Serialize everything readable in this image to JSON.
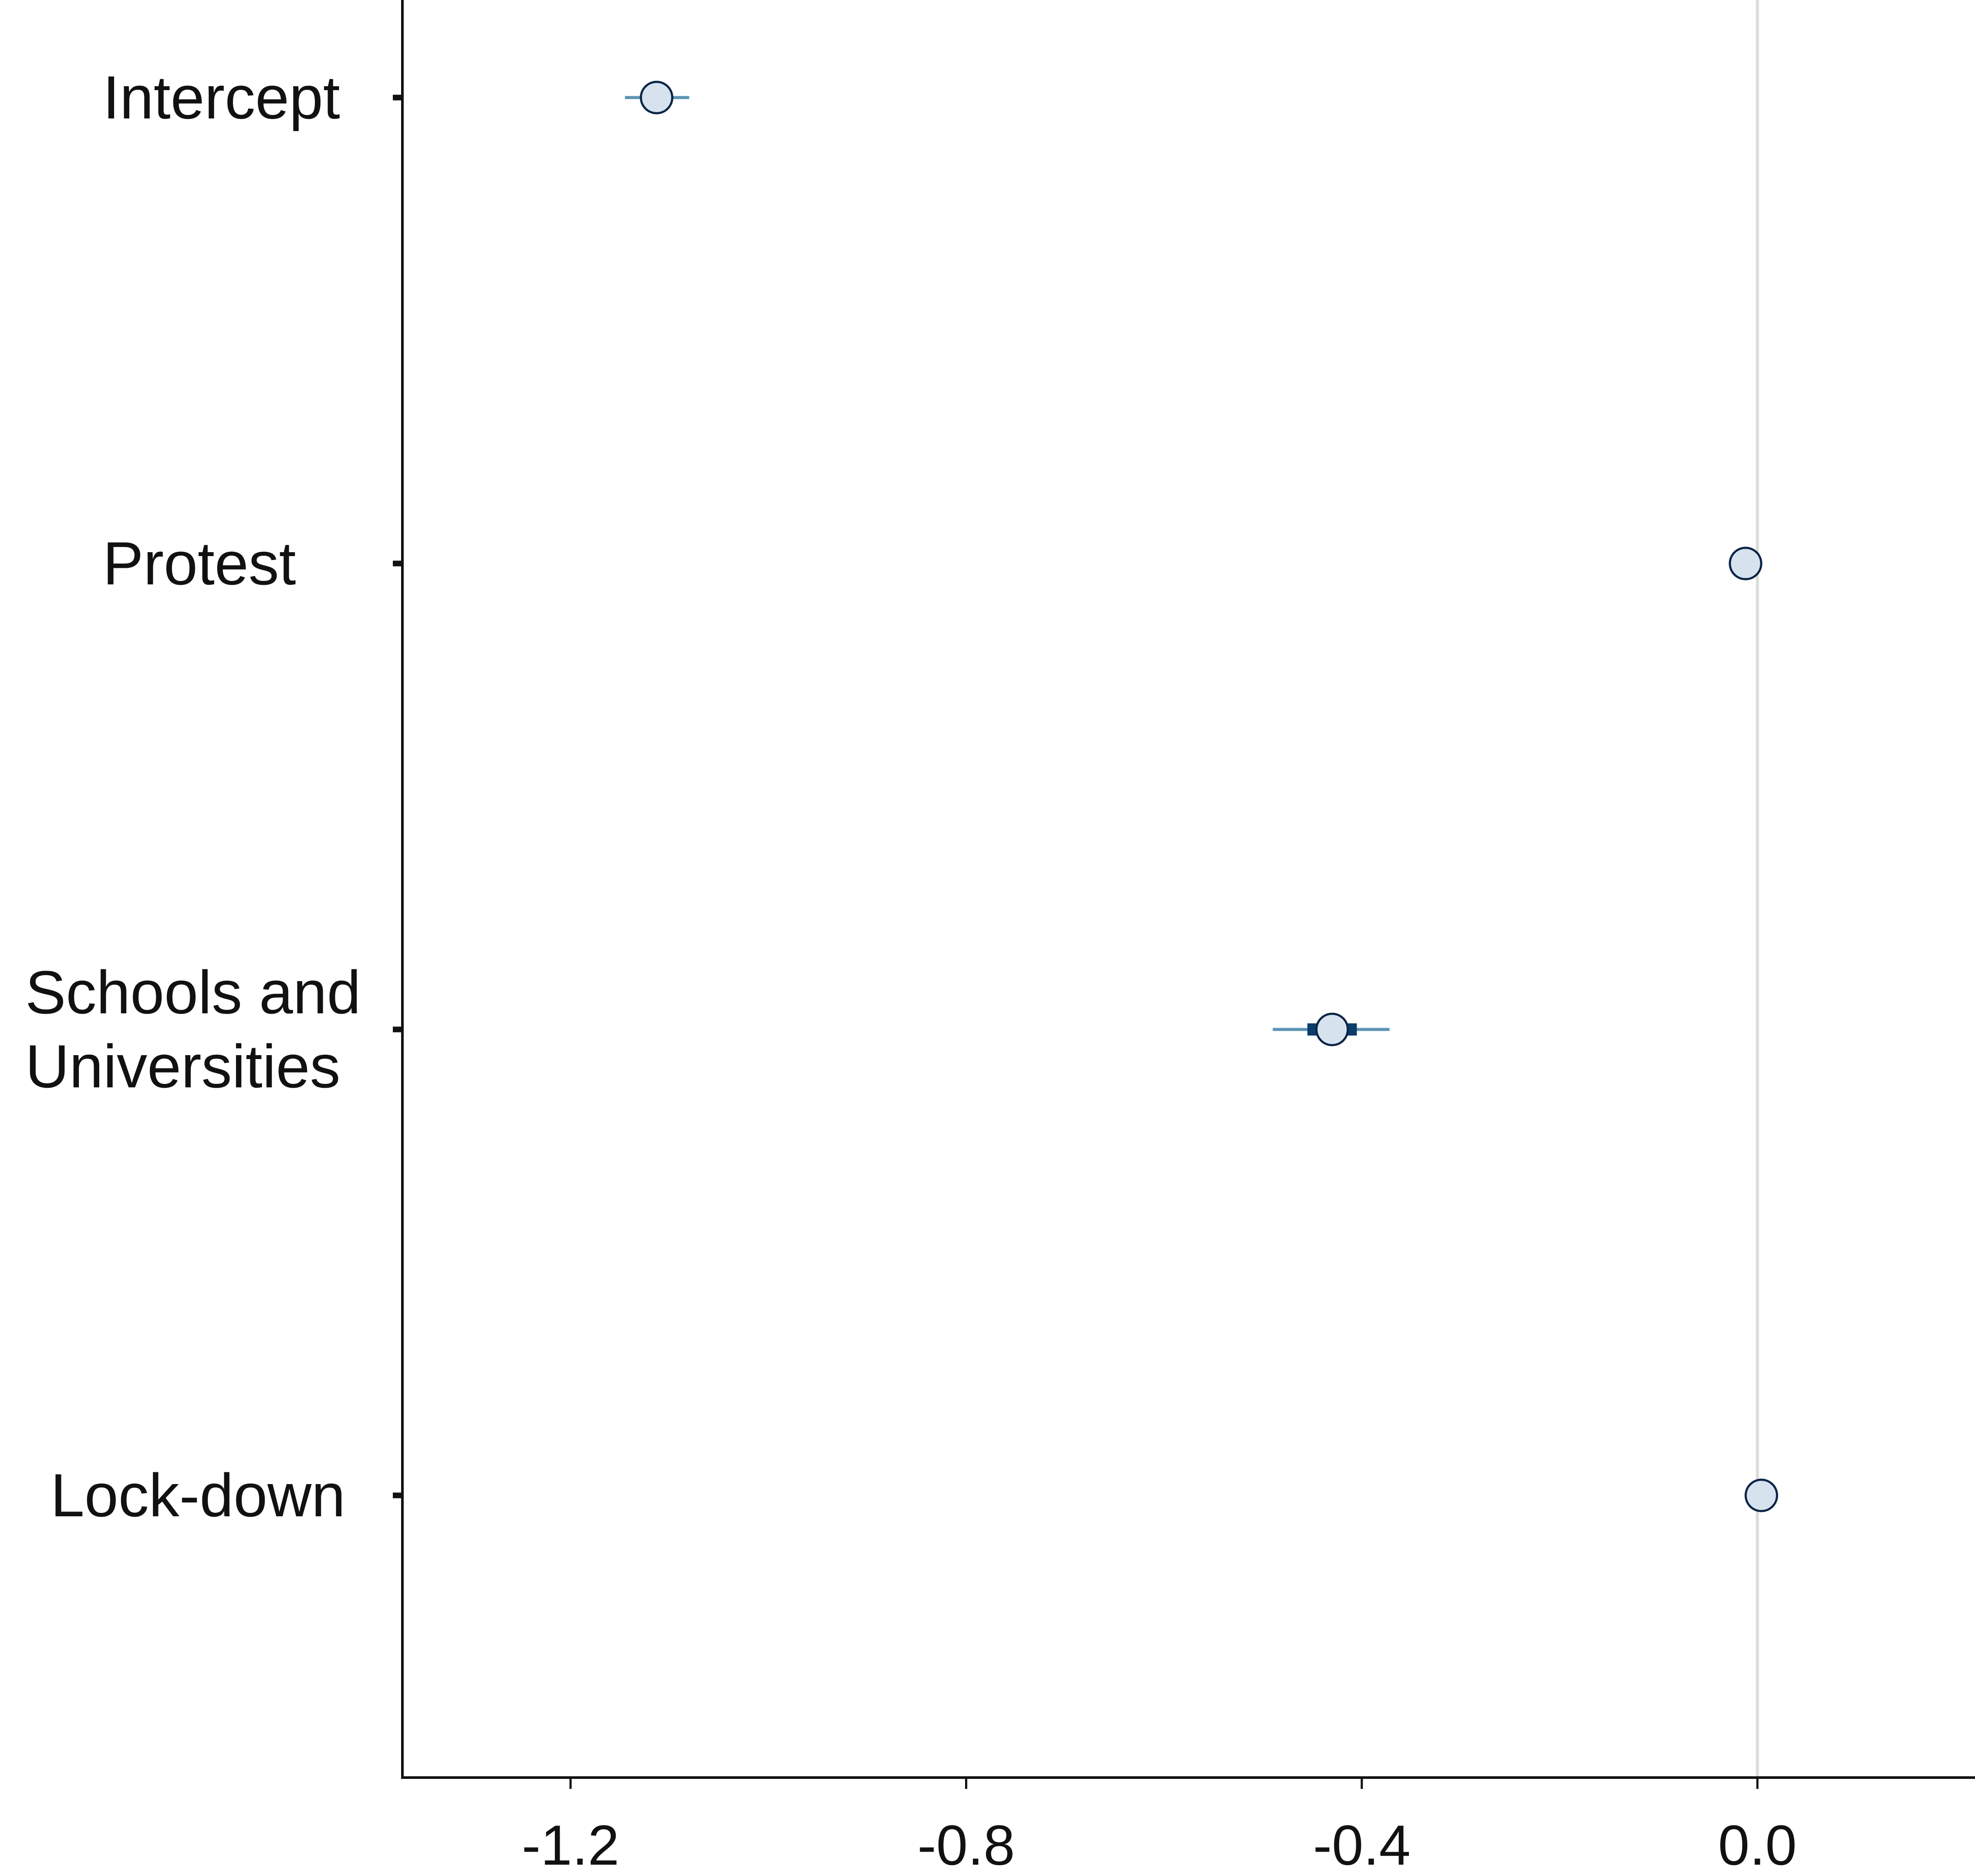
{
  "chart_data": {
    "type": "scatter",
    "subtype": "coefficient-interval-plot",
    "title": "",
    "xlabel": "",
    "ylabel": "",
    "xlim": [
      -1.37,
      0.22
    ],
    "x_ticks": [
      -1.2,
      -0.8,
      -0.4,
      0.0
    ],
    "x_tick_labels": [
      "-1.2",
      "-0.8",
      "-0.4",
      "0.0"
    ],
    "reference_line": 0.0,
    "grid": false,
    "legend": "none",
    "categories": [
      {
        "label_lines": [
          "Intercept"
        ]
      },
      {
        "label_lines": [
          "Protest"
        ]
      },
      {
        "label_lines": [
          "Schools and",
          "Universities"
        ]
      },
      {
        "label_lines": [
          "Lock-down"
        ]
      }
    ],
    "points": [
      {
        "estimate": -1.113,
        "inner": [
          -1.129,
          -1.097
        ],
        "outer": [
          -1.145,
          -1.08
        ]
      },
      {
        "estimate": -0.012,
        "inner": [
          -0.015,
          -0.009
        ],
        "outer": [
          -0.018,
          -0.006
        ]
      },
      {
        "estimate": -0.43,
        "inner": [
          -0.455,
          -0.405
        ],
        "outer": [
          -0.49,
          -0.372
        ]
      },
      {
        "estimate": 0.004,
        "inner": [
          0.002,
          0.006
        ],
        "outer": [
          0.0,
          0.008
        ]
      }
    ],
    "colors": {
      "outer_interval": "#5b93b5",
      "inner_interval": "#0b3d6b",
      "point_fill": "#d6e3ef",
      "point_stroke": "#0b2447",
      "axis": "#111111",
      "reference_line": "#dcdcdc"
    }
  }
}
